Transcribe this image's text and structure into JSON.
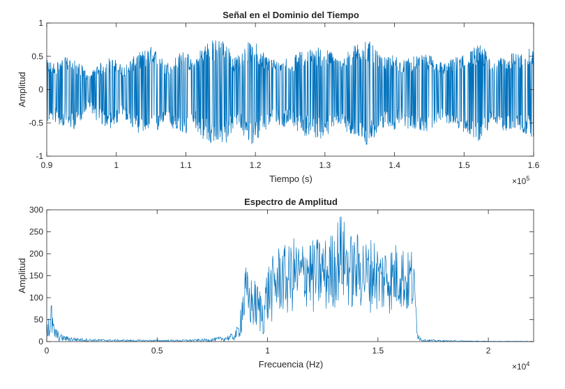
{
  "chart_data": [
    {
      "type": "line",
      "title": "Señal en el Dominio del Tiempo",
      "xlabel": "Tiempo (s)",
      "ylabel": "Amplitud",
      "x_exponent_label": "×10",
      "x_exponent": "5",
      "xlim": [
        0.9,
        1.6
      ],
      "ylim": [
        -1,
        1
      ],
      "x_ticks": [
        "0.9",
        "1",
        "1.1",
        "1.2",
        "1.3",
        "1.4",
        "1.5",
        "1.6"
      ],
      "y_ticks": [
        "-1",
        "-0.5",
        "0",
        "0.5",
        "1"
      ],
      "line_color": "#0072BD",
      "grid": false,
      "envelope": {
        "x": [
          0.9,
          0.91,
          0.92,
          0.93,
          0.94,
          0.95,
          0.96,
          0.97,
          0.98,
          0.99,
          1.0,
          1.01,
          1.02,
          1.03,
          1.04,
          1.05,
          1.06,
          1.07,
          1.08,
          1.09,
          1.1,
          1.11,
          1.12,
          1.13,
          1.14,
          1.15,
          1.16,
          1.17,
          1.18,
          1.19,
          1.2,
          1.21,
          1.22,
          1.23,
          1.24,
          1.25,
          1.26,
          1.27,
          1.28,
          1.29,
          1.3,
          1.31,
          1.32,
          1.33,
          1.34,
          1.35,
          1.36,
          1.37,
          1.38,
          1.39,
          1.4,
          1.41,
          1.42,
          1.43,
          1.44,
          1.45,
          1.46,
          1.47,
          1.48,
          1.49,
          1.5,
          1.51,
          1.52,
          1.53,
          1.54,
          1.55,
          1.56,
          1.57,
          1.58,
          1.59,
          1.6
        ],
        "upper": [
          0.45,
          0.42,
          0.46,
          0.5,
          0.44,
          0.38,
          0.2,
          0.35,
          0.42,
          0.48,
          0.45,
          0.35,
          0.45,
          0.55,
          0.6,
          0.65,
          0.58,
          0.4,
          0.45,
          0.55,
          0.6,
          0.42,
          0.62,
          0.75,
          0.75,
          0.78,
          0.72,
          0.48,
          0.58,
          0.72,
          0.72,
          0.6,
          0.5,
          0.45,
          0.55,
          0.42,
          0.55,
          0.6,
          0.62,
          0.65,
          0.62,
          0.58,
          0.45,
          0.55,
          0.65,
          0.75,
          0.78,
          0.65,
          0.5,
          0.48,
          0.55,
          0.42,
          0.5,
          0.5,
          0.52,
          0.55,
          0.48,
          0.4,
          0.45,
          0.5,
          0.58,
          0.6,
          0.7,
          0.62,
          0.45,
          0.45,
          0.55,
          0.55,
          0.55,
          0.62,
          0.6
        ],
        "lower": [
          -0.5,
          -0.48,
          -0.55,
          -0.58,
          -0.6,
          -0.45,
          -0.25,
          -0.45,
          -0.55,
          -0.6,
          -0.55,
          -0.4,
          -0.55,
          -0.65,
          -0.65,
          -0.72,
          -0.65,
          -0.45,
          -0.6,
          -0.7,
          -0.7,
          -0.48,
          -0.72,
          -0.8,
          -0.85,
          -0.85,
          -0.8,
          -0.55,
          -0.65,
          -0.82,
          -0.82,
          -0.7,
          -0.55,
          -0.5,
          -0.62,
          -0.48,
          -0.62,
          -0.7,
          -0.72,
          -0.75,
          -0.72,
          -0.65,
          -0.52,
          -0.62,
          -0.72,
          -0.85,
          -0.88,
          -0.75,
          -0.6,
          -0.55,
          -0.62,
          -0.5,
          -0.6,
          -0.6,
          -0.62,
          -0.65,
          -0.55,
          -0.45,
          -0.55,
          -0.6,
          -0.65,
          -0.7,
          -0.78,
          -0.7,
          -0.55,
          -0.55,
          -0.65,
          -0.65,
          -0.62,
          -0.7,
          -0.72
        ]
      }
    },
    {
      "type": "line",
      "title": "Espectro de Amplitud",
      "xlabel": "Frecuencia (Hz)",
      "ylabel": "Amplitud",
      "x_exponent_label": "×10",
      "x_exponent": "4",
      "xlim": [
        0,
        2.205
      ],
      "ylim": [
        0,
        300
      ],
      "x_ticks": [
        "0",
        "0.5",
        "1",
        "1.5",
        "2"
      ],
      "y_ticks": [
        "0",
        "50",
        "100",
        "150",
        "200",
        "250",
        "300"
      ],
      "line_color": "#0072BD",
      "grid": false,
      "envelope": {
        "x": [
          0.0,
          0.005,
          0.01,
          0.015,
          0.02,
          0.03,
          0.04,
          0.05,
          0.06,
          0.08,
          0.1,
          0.15,
          0.2,
          0.3,
          0.4,
          0.5,
          0.6,
          0.7,
          0.75,
          0.8,
          0.85,
          0.87,
          0.88,
          0.89,
          0.9,
          0.92,
          0.95,
          0.98,
          1.0,
          1.03,
          1.06,
          1.09,
          1.12,
          1.15,
          1.18,
          1.21,
          1.24,
          1.27,
          1.3,
          1.33,
          1.36,
          1.39,
          1.42,
          1.45,
          1.48,
          1.51,
          1.54,
          1.57,
          1.6,
          1.63,
          1.65,
          1.66,
          1.67,
          1.68,
          1.69,
          1.7,
          1.72,
          1.75,
          1.8,
          1.9,
          2.0,
          2.1,
          2.205
        ],
        "upper": [
          95,
          110,
          80,
          60,
          100,
          45,
          35,
          25,
          18,
          14,
          12,
          8,
          6,
          5,
          4,
          4,
          4,
          6,
          8,
          12,
          20,
          45,
          110,
          140,
          175,
          150,
          140,
          110,
          180,
          200,
          230,
          215,
          240,
          225,
          250,
          230,
          245,
          235,
          260,
          300,
          260,
          240,
          255,
          230,
          245,
          215,
          230,
          220,
          240,
          200,
          220,
          205,
          120,
          30,
          12,
          7,
          5,
          4,
          3,
          2,
          1,
          1,
          1
        ],
        "lower": [
          0,
          0,
          0,
          0,
          0,
          0,
          0,
          0,
          0,
          0,
          0,
          0,
          0,
          0,
          0,
          0,
          0,
          0,
          0,
          0,
          2,
          5,
          10,
          20,
          30,
          25,
          20,
          10,
          30,
          45,
          60,
          55,
          65,
          60,
          75,
          55,
          65,
          60,
          70,
          90,
          75,
          65,
          70,
          60,
          70,
          55,
          60,
          60,
          70,
          55,
          60,
          55,
          30,
          5,
          1,
          0,
          0,
          0,
          0,
          0,
          0,
          0,
          0
        ]
      }
    }
  ]
}
